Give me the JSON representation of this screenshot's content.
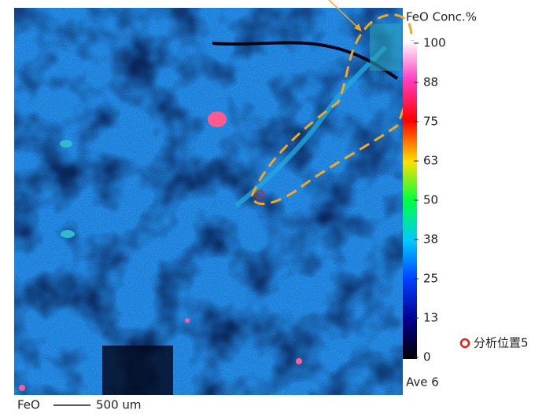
{
  "colorbar": {
    "title": "FeO Conc.%",
    "ticks": [
      "100",
      "88",
      "75",
      "63",
      "50",
      "38",
      "25",
      "13",
      "0"
    ],
    "average": "Ave 6"
  },
  "scale_bar": {
    "element": "FeO",
    "length": "500 um"
  },
  "legend": {
    "label": "分析位置5"
  }
}
